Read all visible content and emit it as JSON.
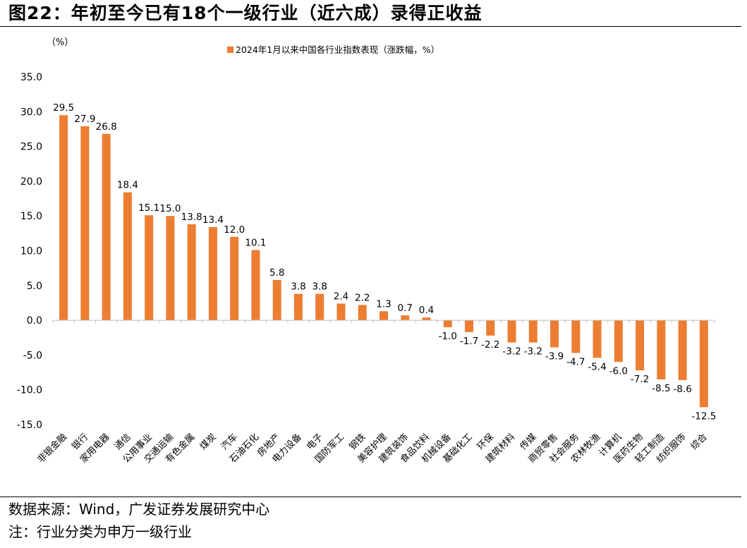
{
  "figure": {
    "title": "图22：年初至今已有18个一级行业（近六成）录得正收益",
    "source": "数据来源：Wind，广发证券发展研究中心",
    "note": "注：行业分类为申万一级行业"
  },
  "chart_data": {
    "type": "bar",
    "unit_label": "（%）",
    "legend": "2024年1月以来中国各行业指数表现（涨跌幅，%）",
    "legend_position": "top-center",
    "bar_color": "#ED7D31",
    "ylim": [
      -15,
      35
    ],
    "yticks": [
      "35.0",
      "30.0",
      "25.0",
      "20.0",
      "15.0",
      "10.0",
      "5.0",
      "0.0",
      "-5.0",
      "-10.0",
      "-15.0"
    ],
    "ytick_values": [
      35,
      30,
      25,
      20,
      15,
      10,
      5,
      0,
      -5,
      -10,
      -15
    ],
    "grid": false,
    "categories": [
      "非银金融",
      "银行",
      "家用电器",
      "通信",
      "公用事业",
      "交通运输",
      "有色金属",
      "煤炭",
      "汽车",
      "石油石化",
      "房地产",
      "电力设备",
      "电子",
      "国防军工",
      "钢铁",
      "美容护理",
      "建筑装饰",
      "食品饮料",
      "机械设备",
      "基础化工",
      "环保",
      "建筑材料",
      "传媒",
      "商贸零售",
      "社会服务",
      "农林牧渔",
      "计算机",
      "医药生物",
      "轻工制造",
      "纺织服饰",
      "综合"
    ],
    "values": [
      29.5,
      27.9,
      26.8,
      18.4,
      15.1,
      15.0,
      13.8,
      13.4,
      12.0,
      10.1,
      5.8,
      3.8,
      3.8,
      2.4,
      2.2,
      1.3,
      0.7,
      0.4,
      -1.0,
      -1.7,
      -2.2,
      -3.2,
      -3.2,
      -3.9,
      -4.7,
      -5.4,
      -6.0,
      -7.2,
      -8.5,
      -8.6,
      -12.5
    ],
    "value_labels": [
      "29.5",
      "27.9",
      "26.8",
      "18.4",
      "15.1",
      "15.0",
      "13.8",
      "13.4",
      "12.0",
      "10.1",
      "5.8",
      "3.8",
      "3.8",
      "2.4",
      "2.2",
      "1.3",
      "0.7",
      "0.4",
      "-1.0",
      "-1.7",
      "-2.2",
      "-3.2",
      "-3.2",
      "-3.9",
      "-4.7",
      "-5.4",
      "-6.0",
      "-7.2",
      "-8.5",
      "-8.6",
      "-12.5"
    ]
  }
}
